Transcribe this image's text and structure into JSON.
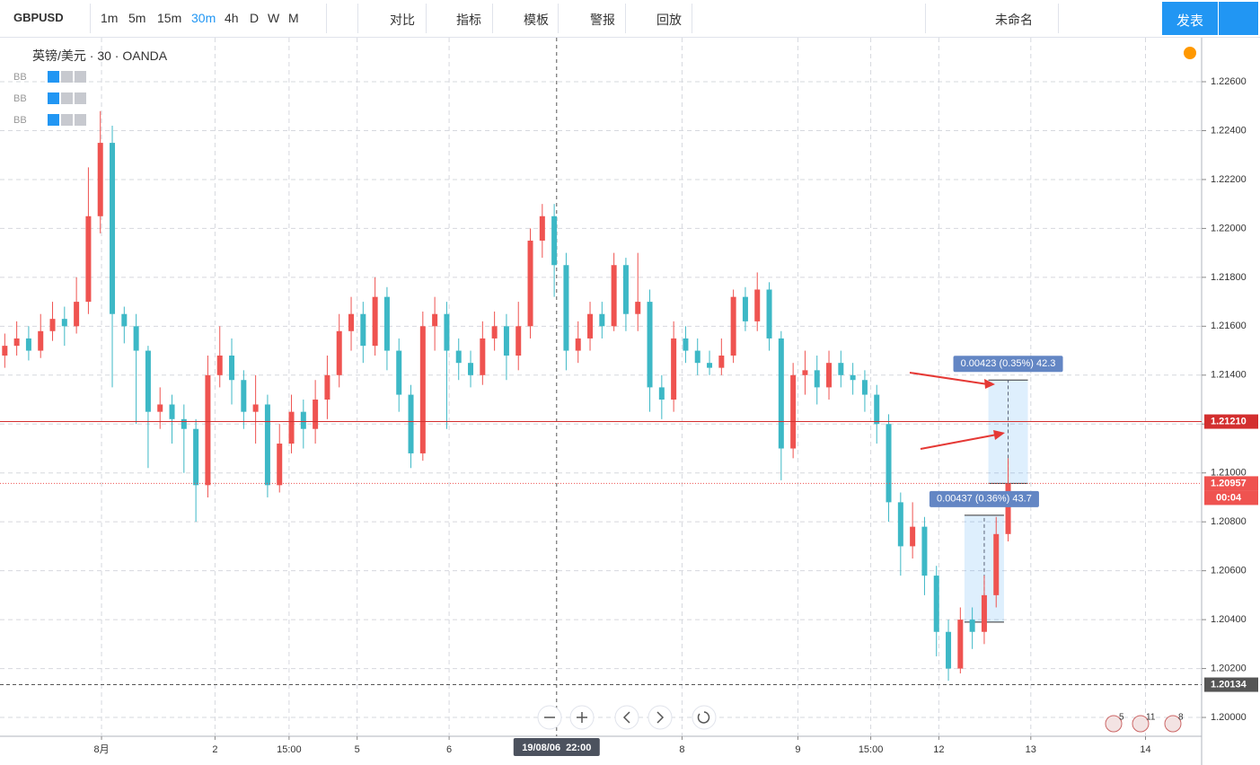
{
  "toolbar": {
    "symbol": "GBPUSD",
    "intervals": [
      "1m",
      "5m",
      "15m",
      "30m",
      "4h",
      "D",
      "W",
      "M"
    ],
    "buttons": [
      "对比",
      "指标",
      "模板",
      "警报",
      "回放"
    ],
    "layout_name": "未命名",
    "publish": "发表"
  },
  "legend": {
    "title": "英镑/美元 · 30 · OANDA",
    "indicators": [
      "BB",
      "BB",
      "BB"
    ]
  },
  "events": [
    "5",
    "11",
    "8"
  ],
  "chart_data": {
    "type": "candlestick",
    "up_color": "#ef5350",
    "down_color": "#3db8c6",
    "grid": true,
    "open": [
      1.2148,
      1.2152,
      1.2155,
      1.215,
      1.2158,
      1.2163,
      1.216,
      1.217,
      1.2205,
      1.2235,
      1.2165,
      1.216,
      1.215,
      1.2125,
      1.2128,
      1.2122,
      1.2118,
      1.2095,
      1.214,
      1.2148,
      1.2138,
      1.2125,
      1.2128,
      1.2095,
      1.2112,
      1.2125,
      1.2118,
      1.213,
      1.214,
      1.2158,
      1.2165,
      1.2152,
      1.2172,
      1.215,
      1.2132,
      1.2108,
      1.216,
      1.2165,
      1.215,
      1.2145,
      1.214,
      1.2155,
      1.216,
      1.2148,
      1.216,
      1.2195,
      1.2205,
      1.2185,
      1.215,
      1.2155,
      1.2165,
      1.216,
      1.2185,
      1.2165,
      1.217,
      1.2135,
      1.213,
      1.2155,
      1.215,
      1.2145,
      1.2143,
      1.2148,
      1.2172,
      1.2162,
      1.2175,
      1.2155,
      1.211,
      1.214,
      1.2142,
      1.2135,
      1.2145,
      1.214,
      1.2138,
      1.2132,
      1.212,
      1.2088,
      1.207,
      1.2078,
      1.2058,
      1.2035,
      1.202,
      1.204,
      1.2035,
      1.205,
      1.2075
    ],
    "high": [
      1.2157,
      1.2162,
      1.216,
      1.2165,
      1.217,
      1.2168,
      1.218,
      1.2225,
      1.2248,
      1.2242,
      1.2168,
      1.2165,
      1.2152,
      1.2135,
      1.2132,
      1.2128,
      1.2122,
      1.2148,
      1.216,
      1.2155,
      1.2142,
      1.214,
      1.2132,
      1.212,
      1.2132,
      1.213,
      1.2138,
      1.2148,
      1.2165,
      1.2172,
      1.217,
      1.218,
      1.2176,
      1.2155,
      1.2136,
      1.2166,
      1.2172,
      1.217,
      1.2155,
      1.215,
      1.2162,
      1.2166,
      1.2165,
      1.217,
      1.22,
      1.221,
      1.221,
      1.219,
      1.2162,
      1.217,
      1.217,
      1.219,
      1.2188,
      1.219,
      1.2175,
      1.214,
      1.2162,
      1.216,
      1.2155,
      1.215,
      1.2155,
      1.2175,
      1.2176,
      1.2182,
      1.2178,
      1.2158,
      1.2145,
      1.215,
      1.2148,
      1.215,
      1.215,
      1.2145,
      1.2142,
      1.2136,
      1.2124,
      1.2092,
      1.2088,
      1.2082,
      1.2062,
      1.204,
      1.2045,
      1.2045,
      1.2058,
      1.2082,
      1.2106
    ],
    "low": [
      1.2143,
      1.2148,
      1.2146,
      1.2147,
      1.2154,
      1.2152,
      1.2157,
      1.2165,
      1.2198,
      1.2135,
      1.2153,
      1.212,
      1.2102,
      1.2118,
      1.2112,
      1.21,
      1.208,
      1.209,
      1.2135,
      1.2128,
      1.2118,
      1.2112,
      1.209,
      1.2092,
      1.2108,
      1.211,
      1.2112,
      1.2122,
      1.2135,
      1.215,
      1.2145,
      1.2148,
      1.2142,
      1.2125,
      1.2102,
      1.2105,
      1.215,
      1.2118,
      1.2138,
      1.2135,
      1.2136,
      1.215,
      1.2138,
      1.2142,
      1.2155,
      1.2188,
      1.2172,
      1.2142,
      1.2145,
      1.215,
      1.2155,
      1.2158,
      1.2158,
      1.2158,
      1.2125,
      1.2122,
      1.2125,
      1.2145,
      1.214,
      1.214,
      1.214,
      1.2145,
      1.2158,
      1.2158,
      1.215,
      1.2097,
      1.2106,
      1.2132,
      1.2128,
      1.213,
      1.2135,
      1.2132,
      1.2125,
      1.2112,
      1.208,
      1.2058,
      1.2065,
      1.205,
      1.2025,
      1.2015,
      1.2018,
      1.2028,
      1.203,
      1.2045,
      1.2072
    ],
    "close": [
      1.2152,
      1.2155,
      1.215,
      1.2158,
      1.2163,
      1.216,
      1.217,
      1.2205,
      1.2235,
      1.2165,
      1.216,
      1.215,
      1.2125,
      1.2128,
      1.2122,
      1.2118,
      1.2095,
      1.214,
      1.2148,
      1.2138,
      1.2125,
      1.2128,
      1.2095,
      1.2112,
      1.2125,
      1.2118,
      1.213,
      1.214,
      1.2158,
      1.2165,
      1.2152,
      1.2172,
      1.215,
      1.2132,
      1.2108,
      1.216,
      1.2165,
      1.215,
      1.2145,
      1.214,
      1.2155,
      1.216,
      1.2148,
      1.216,
      1.2195,
      1.2205,
      1.2185,
      1.215,
      1.2155,
      1.2165,
      1.216,
      1.2185,
      1.2165,
      1.217,
      1.2135,
      1.213,
      1.2155,
      1.215,
      1.2145,
      1.2143,
      1.2148,
      1.2172,
      1.2162,
      1.2175,
      1.2155,
      1.211,
      1.214,
      1.2142,
      1.2135,
      1.2145,
      1.214,
      1.2138,
      1.2132,
      1.212,
      1.2088,
      1.207,
      1.2078,
      1.2058,
      1.2035,
      1.202,
      1.204,
      1.2035,
      1.205,
      1.2075,
      1.20957
    ],
    "xlim": [
      -0.4,
      100.2
    ],
    "xticks": [
      {
        "value": 8.1,
        "label": "8月"
      },
      {
        "value": 17.6,
        "label": "2"
      },
      {
        "value": 23.8,
        "label": "15:00"
      },
      {
        "value": 29.5,
        "label": "5"
      },
      {
        "value": 37.2,
        "label": "6"
      },
      {
        "value": 56.7,
        "label": "8"
      },
      {
        "value": 66.4,
        "label": "9"
      },
      {
        "value": 72.5,
        "label": "15:00"
      },
      {
        "value": 78.2,
        "label": "12"
      },
      {
        "value": 85.9,
        "label": "13"
      },
      {
        "value": 95.5,
        "label": "14"
      }
    ],
    "crosshair": {
      "value": 46.2,
      "label": "19/08/06  22:00"
    },
    "ylim": [
      1.19923,
      1.2278
    ],
    "yticks": [
      {
        "value": 1.2,
        "label": "1.20000"
      },
      {
        "value": 1.202,
        "label": "1.20200"
      },
      {
        "value": 1.204,
        "label": "1.20400"
      },
      {
        "value": 1.206,
        "label": "1.20600"
      },
      {
        "value": 1.208,
        "label": "1.20800"
      },
      {
        "value": 1.21,
        "label": "1.21000"
      },
      {
        "value": 1.212,
        "label": "1.21200"
      },
      {
        "value": 1.214,
        "label": "1.21400"
      },
      {
        "value": 1.216,
        "label": "1.21600"
      },
      {
        "value": 1.218,
        "label": "1.21800"
      },
      {
        "value": 1.22,
        "label": "1.22000"
      },
      {
        "value": 1.222,
        "label": "1.22200"
      },
      {
        "value": 1.224,
        "label": "1.22400"
      },
      {
        "value": 1.226,
        "label": "1.22600"
      }
    ],
    "price_lines": [
      {
        "value": 1.2121,
        "label": "1.21210",
        "color": "#d32f2f",
        "style": "solid"
      },
      {
        "value": 1.20957,
        "label": "1.20957",
        "color": "#ef5350",
        "style": "dotted",
        "countdown": "00:04"
      },
      {
        "value": 1.20134,
        "label": "1.20134",
        "color": "#555555",
        "style": "dashed"
      }
    ],
    "measures": [
      {
        "from": 1.20957,
        "to": 1.2138,
        "at": 84,
        "label": "0.00423 (0.35%) 42.3"
      },
      {
        "from": 1.2039,
        "to": 1.20827,
        "at": 82,
        "label": "0.00437 (0.36%) 43.7"
      }
    ]
  }
}
